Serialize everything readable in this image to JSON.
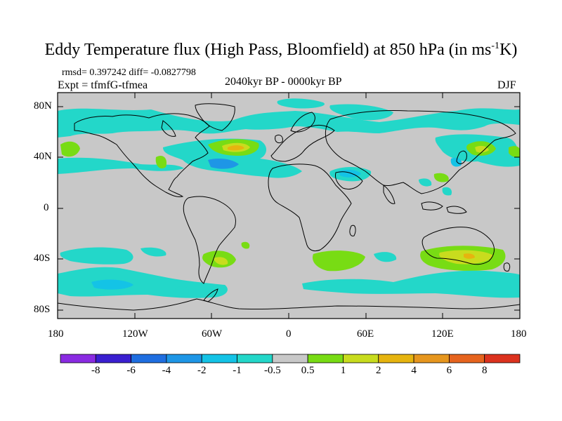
{
  "title": {
    "main": "Eddy Temperature flux (High Pass, Bloomfield) at 850 hPa (in ms",
    "superscript": "-1",
    "suffix": "K)"
  },
  "stats": {
    "rmsd": "rmsd= 0.397242 diff= -0.0827798",
    "expt": "Expt = tfmfG-tfmea",
    "period": "2040kyr BP - 0000kyr BP",
    "season": "DJF"
  },
  "axes": {
    "lat_ticks": [
      "80N",
      "40N",
      "0",
      "40S",
      "80S"
    ],
    "lon_ticks": [
      "180",
      "120W",
      "60W",
      "0",
      "60E",
      "120E",
      "180"
    ]
  },
  "colorbar": {
    "colors": [
      "#8a2be2",
      "#3a1fd0",
      "#1f6ee0",
      "#1e96e6",
      "#14c3e6",
      "#23d7c9",
      "#c8c8c8",
      "#78dc14",
      "#c8dc1e",
      "#e6b40f",
      "#e6961e",
      "#e6641e",
      "#dc321e"
    ],
    "labels": [
      "-8",
      "-6",
      "-4",
      "-2",
      "-1",
      "-0.5",
      "0.5",
      "1",
      "2",
      "4",
      "6",
      "8"
    ]
  },
  "legend_colors": {
    "cyan": "#23d7c9",
    "light_blue": "#14c3e6",
    "blue": "#1e96e6",
    "green": "#78dc14",
    "yellow": "#c8dc1e",
    "orange": "#e6b40f",
    "background": "#c8c8c8"
  }
}
